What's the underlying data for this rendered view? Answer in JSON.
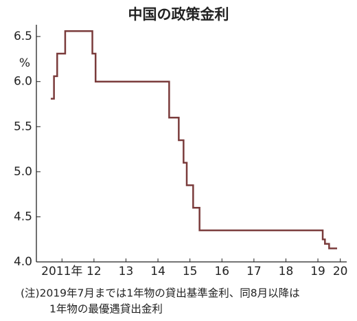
{
  "chart_data": {
    "type": "step",
    "title": "中国の政策金利",
    "y_unit": "%",
    "note": [
      "(注)2019年7月までは1年物の貸出基準金利、同8月以降は",
      "1年物の最優遇貸出金利"
    ],
    "series": [
      {
        "color": "#7a3b3b",
        "x": [
          2011.15,
          2011.25,
          2011.35,
          2011.6,
          2012.45,
          2012.55,
          2014.85,
          2015.15,
          2015.3,
          2015.4,
          2015.6,
          2015.8,
          2019.65,
          2019.72,
          2019.85,
          2020.1
        ],
        "values": [
          5.81,
          6.06,
          6.31,
          6.56,
          6.31,
          6.0,
          5.6,
          5.35,
          5.1,
          4.85,
          4.6,
          4.35,
          4.25,
          4.2,
          4.15,
          4.15
        ]
      }
    ],
    "xlim": [
      2010.7,
      2020.4
    ],
    "ylim": [
      4.0,
      6.6
    ],
    "yticks": [
      {
        "value": 4.0,
        "label": "4.0"
      },
      4.5,
      {
        "value": 5.0,
        "label": "5.0"
      },
      5.5,
      {
        "value": 6.0,
        "label": "6.0"
      },
      6.5
    ],
    "xticks": [
      {
        "value": 2011.5,
        "label": "2011年"
      },
      {
        "value": 2012.5,
        "label": "12"
      },
      {
        "value": 2013.5,
        "label": "13"
      },
      {
        "value": 2014.5,
        "label": "14"
      },
      {
        "value": 2015.5,
        "label": "15"
      },
      {
        "value": 2016.5,
        "label": "16"
      },
      {
        "value": 2017.5,
        "label": "17"
      },
      {
        "value": 2018.5,
        "label": "18"
      },
      {
        "value": 2019.5,
        "label": "19"
      },
      {
        "value": 2020.2,
        "label": "20"
      }
    ]
  }
}
